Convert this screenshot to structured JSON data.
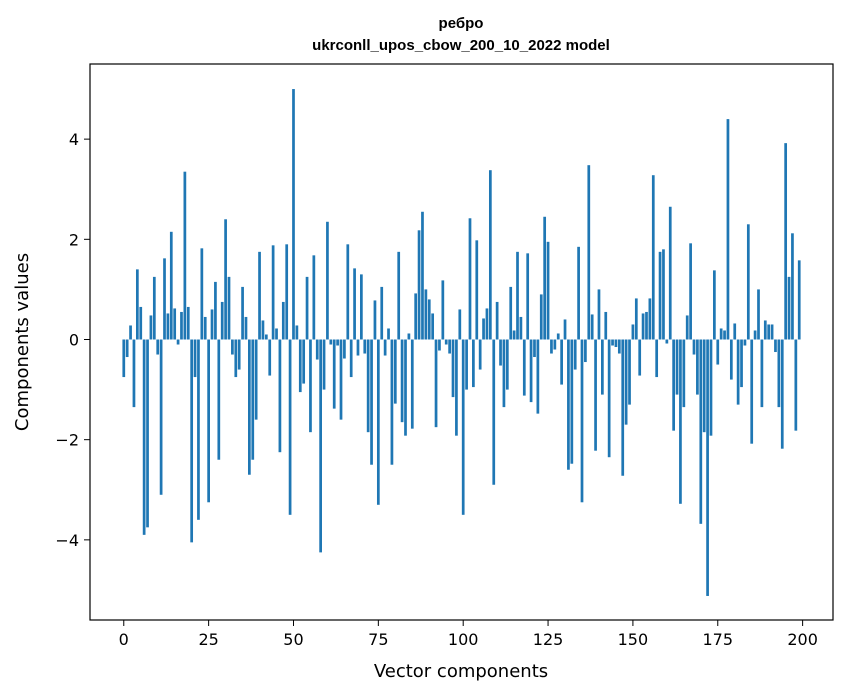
{
  "chart_data": {
    "type": "bar",
    "title": "ребро",
    "subtitle": "ukrconll_upos_cbow_200_10_2022 model",
    "xlabel": "Vector components",
    "ylabel": "Components values",
    "xlim": [
      -9.95,
      208.95
    ],
    "ylim": [
      -5.6,
      5.5
    ],
    "xticks": [
      0,
      25,
      50,
      75,
      100,
      125,
      150,
      175,
      200
    ],
    "yticks": [
      -4,
      -2,
      0,
      2,
      4
    ],
    "ytick_labels": [
      "−4",
      "−2",
      "0",
      "2",
      "4"
    ],
    "grid": false,
    "color": "#1f77b4",
    "x": [
      0,
      1,
      2,
      3,
      4,
      5,
      6,
      7,
      8,
      9,
      10,
      11,
      12,
      13,
      14,
      15,
      16,
      17,
      18,
      19,
      20,
      21,
      22,
      23,
      24,
      25,
      26,
      27,
      28,
      29,
      30,
      31,
      32,
      33,
      34,
      35,
      36,
      37,
      38,
      39,
      40,
      41,
      42,
      43,
      44,
      45,
      46,
      47,
      48,
      49,
      50,
      51,
      52,
      53,
      54,
      55,
      56,
      57,
      58,
      59,
      60,
      61,
      62,
      63,
      64,
      65,
      66,
      67,
      68,
      69,
      70,
      71,
      72,
      73,
      74,
      75,
      76,
      77,
      78,
      79,
      80,
      81,
      82,
      83,
      84,
      85,
      86,
      87,
      88,
      89,
      90,
      91,
      92,
      93,
      94,
      95,
      96,
      97,
      98,
      99,
      100,
      101,
      102,
      103,
      104,
      105,
      106,
      107,
      108,
      109,
      110,
      111,
      112,
      113,
      114,
      115,
      116,
      117,
      118,
      119,
      120,
      121,
      122,
      123,
      124,
      125,
      126,
      127,
      128,
      129,
      130,
      131,
      132,
      133,
      134,
      135,
      136,
      137,
      138,
      139,
      140,
      141,
      142,
      143,
      144,
      145,
      146,
      147,
      148,
      149,
      150,
      151,
      152,
      153,
      154,
      155,
      156,
      157,
      158,
      159,
      160,
      161,
      162,
      163,
      164,
      165,
      166,
      167,
      168,
      169,
      170,
      171,
      172,
      173,
      174,
      175,
      176,
      177,
      178,
      179,
      180,
      181,
      182,
      183,
      184,
      185,
      186,
      187,
      188,
      189,
      190,
      191,
      192,
      193,
      194,
      195,
      196,
      197,
      198,
      199
    ],
    "values": [
      -0.75,
      -0.35,
      0.28,
      -1.35,
      1.4,
      0.65,
      -3.9,
      -3.75,
      0.48,
      1.25,
      -0.3,
      -3.1,
      1.62,
      0.52,
      2.15,
      0.62,
      -0.1,
      0.55,
      3.35,
      0.65,
      -4.05,
      -0.75,
      -3.6,
      1.82,
      0.45,
      -3.25,
      0.6,
      1.15,
      -2.4,
      0.75,
      2.4,
      1.25,
      -0.3,
      -0.75,
      -0.6,
      1.05,
      0.45,
      -2.7,
      -2.4,
      -1.6,
      1.75,
      0.38,
      0.1,
      -0.72,
      1.88,
      0.22,
      -2.25,
      0.75,
      1.9,
      -3.5,
      5.0,
      0.28,
      -1.05,
      -0.88,
      1.25,
      -1.85,
      1.68,
      -0.4,
      -4.25,
      -1.0,
      2.35,
      -0.1,
      -1.38,
      -0.12,
      -1.6,
      -0.38,
      1.9,
      -0.75,
      1.42,
      -0.32,
      1.3,
      -0.28,
      -1.85,
      -2.5,
      0.78,
      -3.3,
      1.05,
      -0.32,
      0.22,
      -2.5,
      -1.28,
      1.75,
      -1.65,
      -1.92,
      0.12,
      -1.78,
      0.92,
      2.18,
      2.55,
      1.0,
      0.8,
      0.52,
      -1.75,
      -0.22,
      1.18,
      -0.1,
      -0.28,
      -1.15,
      -1.92,
      0.6,
      -3.5,
      -1.0,
      2.42,
      -0.95,
      1.98,
      -0.6,
      0.42,
      0.62,
      3.38,
      -2.9,
      0.75,
      -0.52,
      -1.35,
      -1.0,
      1.05,
      0.18,
      1.75,
      0.45,
      -1.12,
      1.72,
      -1.25,
      -0.35,
      -1.48,
      0.9,
      2.45,
      1.95,
      -0.28,
      -0.2,
      0.12,
      -0.9,
      0.4,
      -2.6,
      -2.48,
      -0.6,
      1.85,
      -3.25,
      -0.45,
      3.48,
      0.5,
      -2.22,
      1.0,
      -1.1,
      0.55,
      -2.35,
      -0.12,
      -0.15,
      -0.28,
      -2.72,
      -1.7,
      -1.3,
      0.3,
      0.82,
      -0.72,
      0.52,
      0.55,
      0.82,
      3.28,
      -0.75,
      1.75,
      1.8,
      -0.08,
      2.65,
      -1.82,
      -1.1,
      -3.28,
      -1.35,
      0.48,
      1.92,
      -0.3,
      -1.1,
      -3.68,
      -1.85,
      -5.12,
      -1.92,
      1.38,
      -0.5,
      0.22,
      0.18,
      4.4,
      -0.8,
      0.32,
      -1.3,
      -0.95,
      -0.12,
      2.3,
      -2.08,
      0.18,
      1.0,
      -1.35,
      0.38,
      0.3,
      0.3,
      -0.25,
      -1.35,
      -2.18,
      3.92,
      1.25,
      2.12,
      -1.82,
      1.58
    ]
  }
}
